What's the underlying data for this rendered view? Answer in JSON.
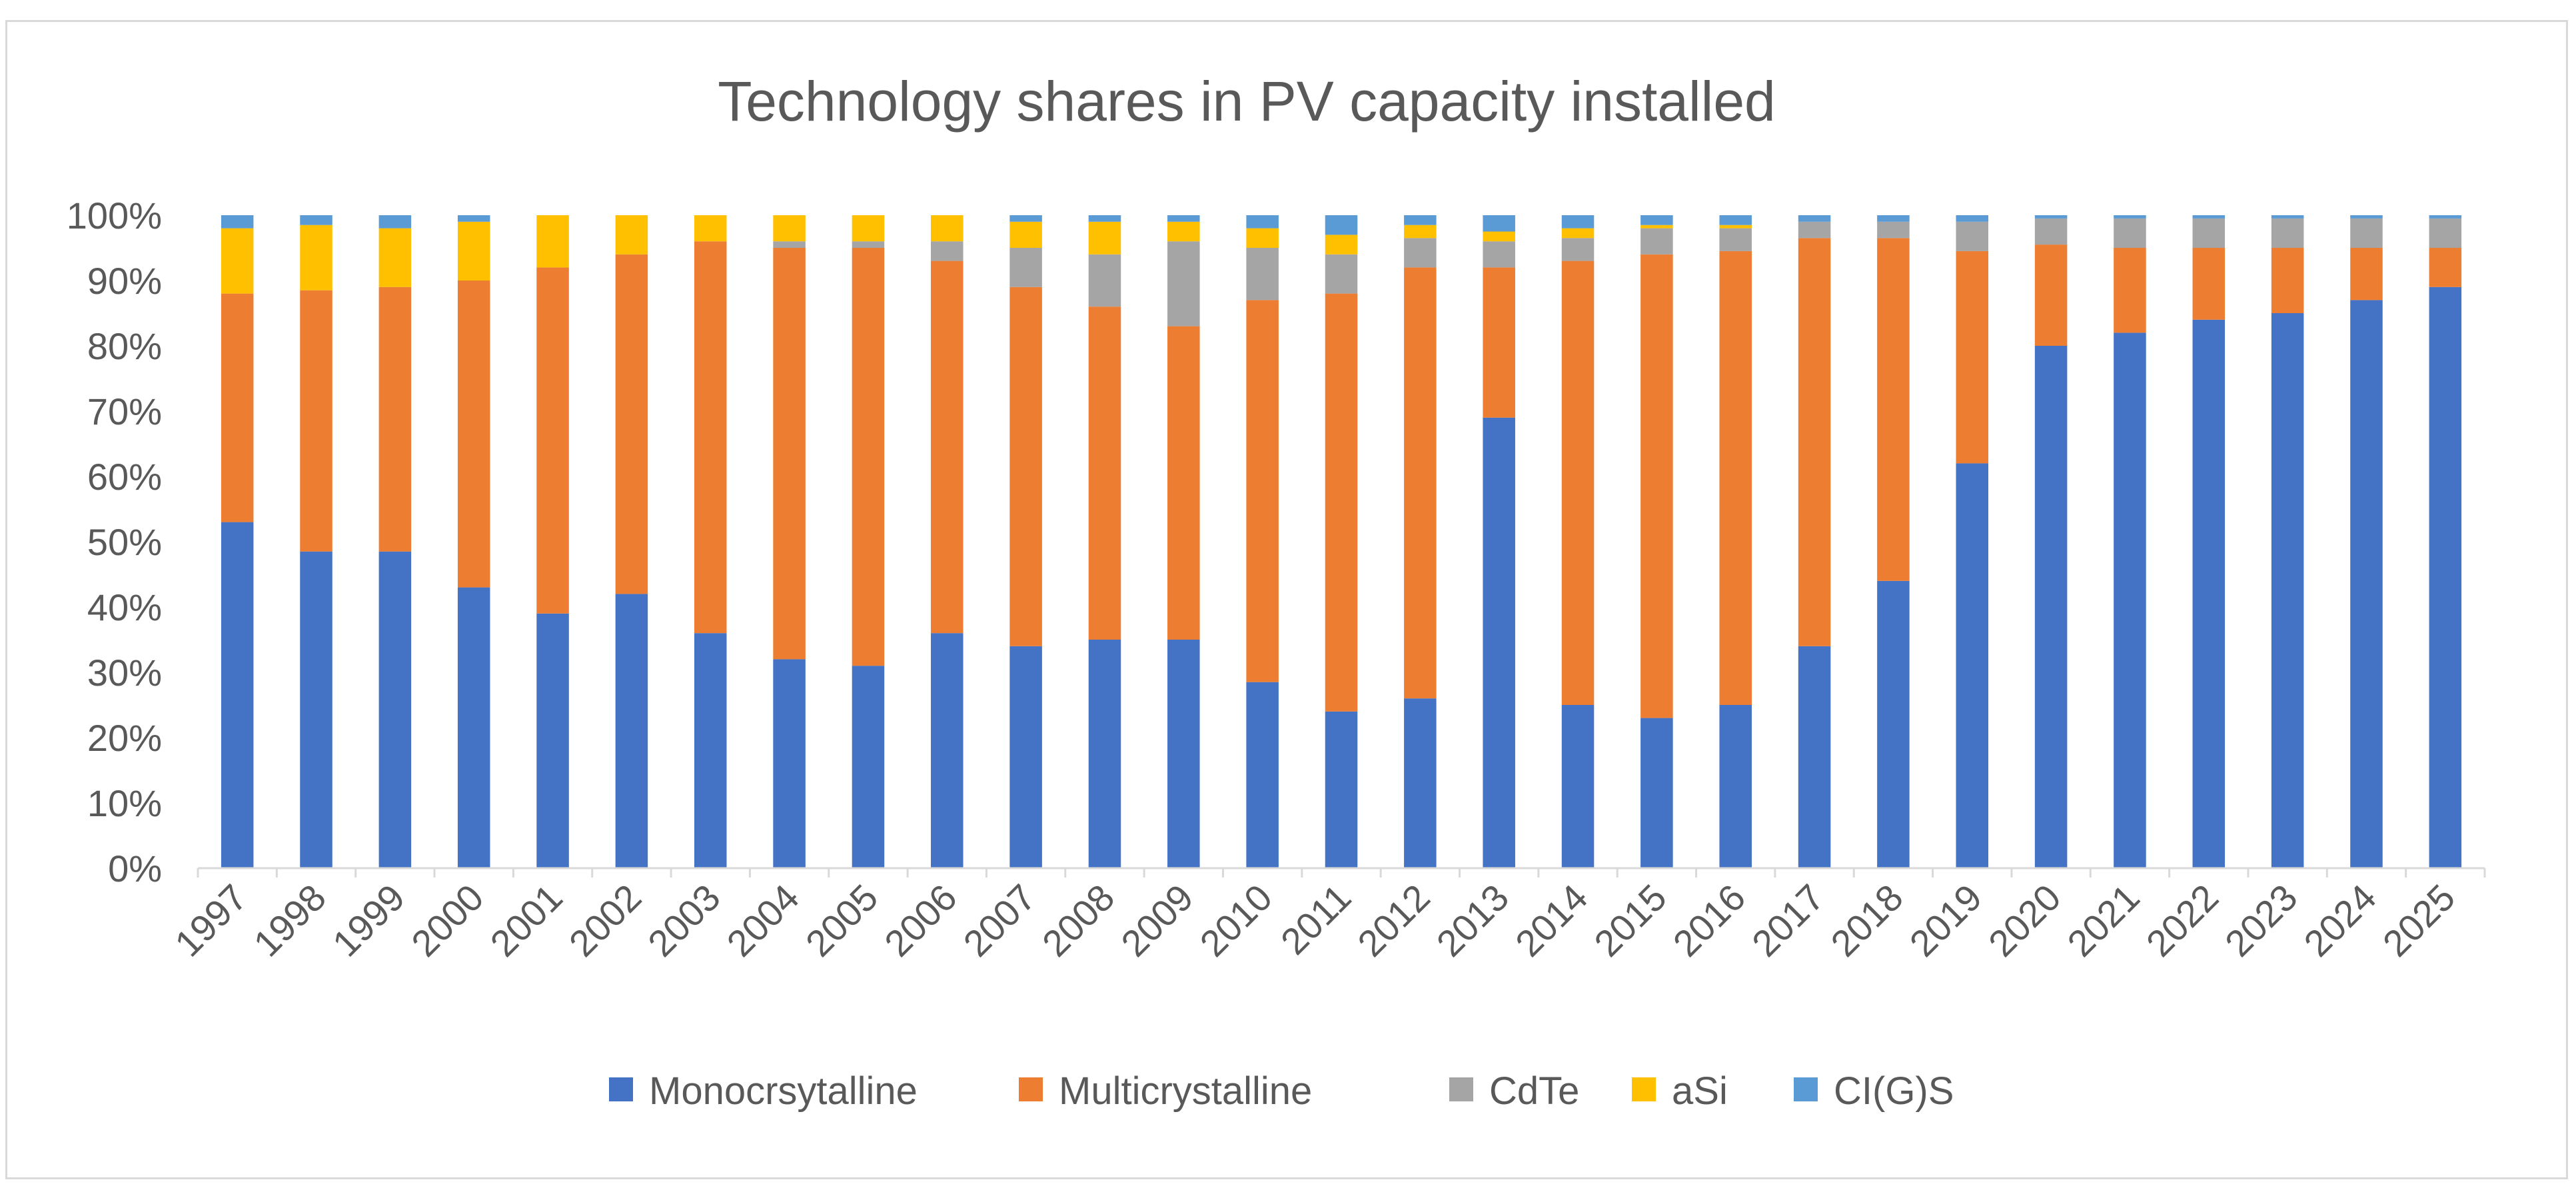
{
  "chart_data": {
    "type": "bar",
    "stacked": true,
    "title": "Technology shares in PV capacity installed",
    "xlabel": "",
    "ylabel": "",
    "ylim": [
      0,
      100
    ],
    "y_ticks": [
      "0%",
      "10%",
      "20%",
      "30%",
      "40%",
      "50%",
      "60%",
      "70%",
      "80%",
      "90%",
      "100%"
    ],
    "categories": [
      "1997",
      "1998",
      "1999",
      "2000",
      "2001",
      "2002",
      "2003",
      "2004",
      "2005",
      "2006",
      "2007",
      "2008",
      "2009",
      "2010",
      "2011",
      "2012",
      "2013",
      "2014",
      "2015",
      "2016",
      "2017",
      "2018",
      "2019",
      "2020",
      "2021",
      "2022",
      "2023",
      "2024",
      "2025"
    ],
    "legend_position": "bottom",
    "series": [
      {
        "name": "Monocrsytalline",
        "color": "#4472C4",
        "values": [
          53,
          48.5,
          48.5,
          43,
          39,
          42,
          36,
          32,
          31,
          36,
          34,
          35,
          35,
          28.5,
          24,
          26,
          69,
          25,
          23,
          25,
          34,
          44,
          62,
          80,
          82,
          84,
          85,
          87,
          89
        ]
      },
      {
        "name": "Multicrystalline",
        "color": "#ED7D31",
        "values": [
          35,
          40,
          40.5,
          47,
          53,
          52,
          60,
          63,
          64,
          57,
          55,
          51,
          48,
          58.5,
          64,
          66,
          23,
          68,
          71,
          69.5,
          62.5,
          52.5,
          32.5,
          15.5,
          13,
          11,
          10,
          8,
          6
        ]
      },
      {
        "name": "CdTe",
        "color": "#A5A5A5",
        "values": [
          0,
          0,
          0,
          0,
          0,
          0,
          0,
          1,
          1,
          3,
          6,
          8,
          13,
          8,
          6,
          4.5,
          4,
          3.5,
          4,
          3.5,
          2.5,
          2.5,
          4.5,
          4,
          4.5,
          4.5,
          4.5,
          4.5,
          4.5
        ]
      },
      {
        "name": "aSi",
        "color": "#FFC000",
        "values": [
          10,
          10,
          9,
          9,
          8,
          6,
          4,
          4,
          4,
          4,
          4,
          5,
          3,
          3,
          3,
          2,
          1.5,
          1.5,
          0.5,
          0.5,
          0,
          0,
          0,
          0,
          0,
          0,
          0,
          0,
          0
        ]
      },
      {
        "name": "CI(G)S",
        "color": "#5B9BD5",
        "values": [
          2,
          1.5,
          2,
          1,
          0,
          0,
          0,
          0,
          0,
          0,
          1,
          1,
          1,
          2,
          3,
          1.5,
          2.5,
          2,
          1.5,
          1.5,
          1,
          1,
          1,
          0.5,
          0.5,
          0.5,
          0.5,
          0.5,
          0.5
        ]
      }
    ]
  }
}
